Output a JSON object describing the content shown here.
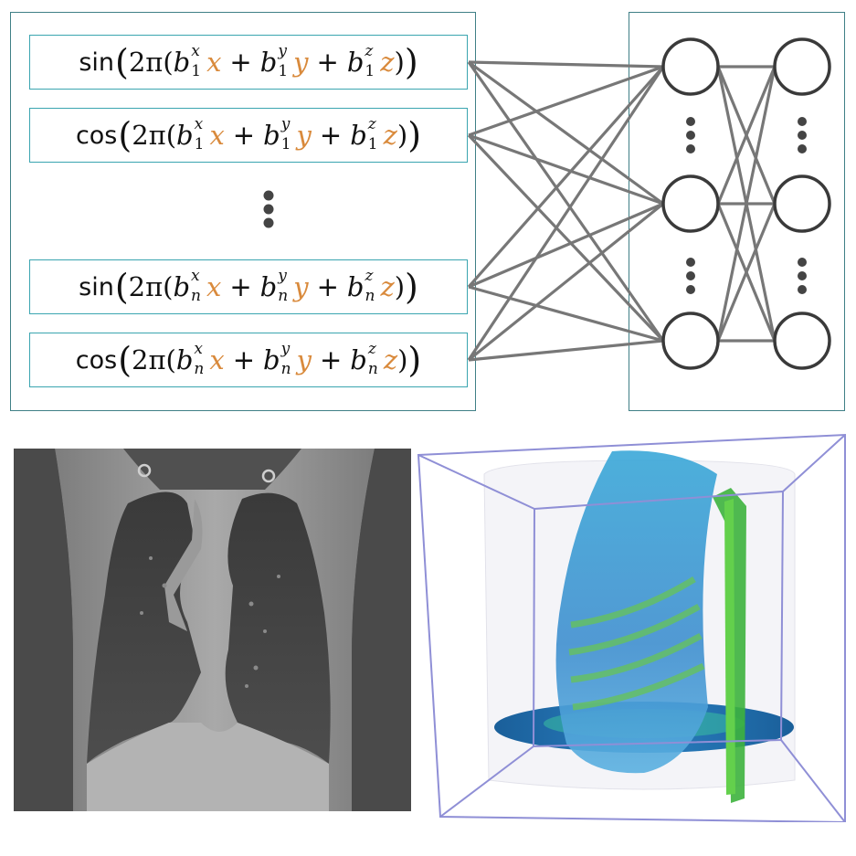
{
  "features": [
    {
      "fn": "sin",
      "index": "1"
    },
    {
      "fn": "cos",
      "index": "1"
    },
    {
      "fn": "sin",
      "index": "n"
    },
    {
      "fn": "cos",
      "index": "n"
    }
  ],
  "formula": {
    "two_pi": "2π(",
    "coef": "b",
    "sup_x": "x",
    "sup_y": "y",
    "sup_z": "z",
    "var_x": "x",
    "var_y": "y",
    "var_z": "z",
    "plus": "+",
    "open_paren": "(",
    "close_paren": ")",
    "inner_close": ")"
  },
  "colors": {
    "box_border": "#3aa5b0",
    "panel_border": "#3f7f86",
    "variable": "#d98a3c",
    "edge": "#777777",
    "node": "#3a3a3a"
  },
  "images": {
    "ct_slice": "grayscale coronal chest CT slice",
    "volume_render": "3D volume rendering of thorax in blue and green"
  }
}
